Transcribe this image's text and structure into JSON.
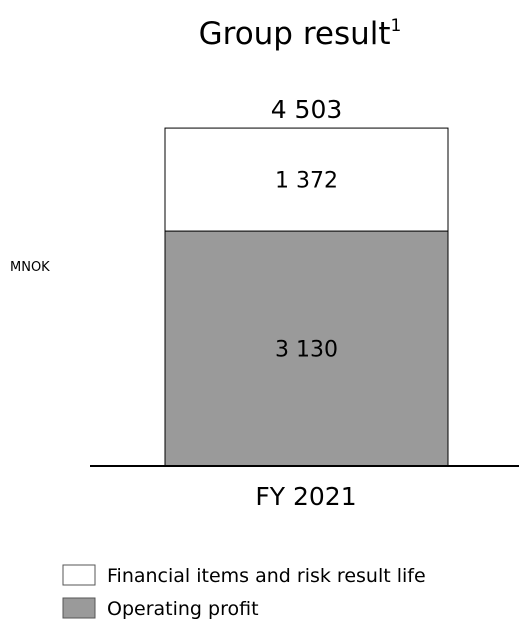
{
  "chart_data": {
    "type": "bar",
    "stacked": true,
    "title": "Group result",
    "title_footnote": "1",
    "ylabel": "MNOK",
    "categories": [
      "FY 2021"
    ],
    "series": [
      {
        "name": "Operating profit",
        "values": [
          3130
        ],
        "value_labels": [
          "3 130"
        ],
        "color": "#9a9a9a"
      },
      {
        "name": "Financial items and risk result life",
        "values": [
          1372
        ],
        "value_labels": [
          "1 372"
        ],
        "color": "#ffffff"
      }
    ],
    "totals": [
      4503
    ],
    "total_labels": [
      "4 503"
    ],
    "ylim": [
      0,
      4503
    ],
    "legend": {
      "position": "bottom-left",
      "items": [
        {
          "label": "Financial items and risk result life",
          "color": "#ffffff"
        },
        {
          "label": "Operating profit",
          "color": "#9a9a9a"
        }
      ]
    },
    "grid": false
  }
}
